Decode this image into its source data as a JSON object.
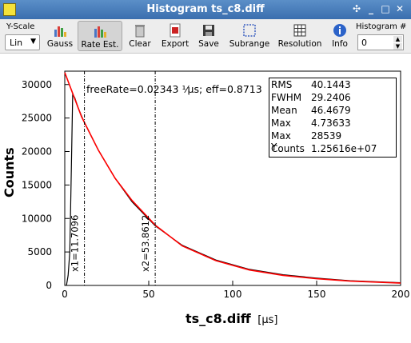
{
  "window": {
    "title": "Histogram ts_c8.diff",
    "buttons": [
      "✣",
      "_",
      "□",
      "✕"
    ]
  },
  "toolbar": {
    "yscale_label": "Y-Scale",
    "yscale_value": "Lin",
    "tools": [
      {
        "label": "Gauss",
        "icon": "gauss-icon"
      },
      {
        "label": "Rate Est.",
        "icon": "rate-estimate-icon",
        "active": true
      },
      {
        "label": "Clear",
        "icon": "clear-icon"
      },
      {
        "label": "Export",
        "icon": "export-icon"
      },
      {
        "label": "Save",
        "icon": "save-icon"
      },
      {
        "label": "Subrange",
        "icon": "subrange-icon"
      },
      {
        "label": "Resolution",
        "icon": "resolution-icon"
      },
      {
        "label": "Info",
        "icon": "info-icon"
      }
    ],
    "histogram_label": "Histogram #",
    "histogram_value": "0"
  },
  "annotation": {
    "free_rate": "freeRate=0.02343 ¹⁄µs; eff=0.8713",
    "x1_label": "x1=11.7096",
    "x2_label": "x2=53.8612"
  },
  "stats": [
    {
      "key": "RMS",
      "value": "40.1443"
    },
    {
      "key": "FWHM",
      "value": "29.2406"
    },
    {
      "key": "Mean",
      "value": "46.4679"
    },
    {
      "key": "Max",
      "value": "4.73633"
    },
    {
      "key": "Max Y",
      "value": "28539"
    },
    {
      "key": "Counts",
      "value": "1.25616e+07"
    }
  ],
  "chart_data": {
    "type": "line",
    "xlabel": "ts_c8.diff",
    "xlabel_unit": "[µs]",
    "ylabel": "Counts",
    "xlim": [
      0,
      200
    ],
    "ylim": [
      0,
      32000
    ],
    "xticks": [
      0,
      50,
      100,
      150,
      200
    ],
    "yticks": [
      0,
      5000,
      10000,
      15000,
      20000,
      25000,
      30000
    ],
    "markers": [
      11.7096,
      53.8612
    ],
    "series": [
      {
        "color": "#000000",
        "x": [
          1,
          2,
          3,
          4,
          4.7,
          6,
          8,
          11.7,
          20,
          30,
          40,
          53.9,
          70,
          90,
          110,
          130,
          150,
          170,
          200
        ],
        "y": [
          0,
          1500,
          5000,
          18500,
          28539,
          28000,
          26500,
          24300,
          20200,
          16000,
          12500,
          8900,
          6000,
          3800,
          2400,
          1600,
          1100,
          700,
          400
        ]
      },
      {
        "color": "#ff0000",
        "x": [
          0,
          10,
          20,
          30,
          40,
          53.9,
          70,
          90,
          110,
          130,
          150,
          170,
          200
        ],
        "y": [
          31800,
          25200,
          20200,
          16000,
          12700,
          9000,
          5900,
          3700,
          2300,
          1500,
          1000,
          650,
          350
        ]
      }
    ]
  }
}
